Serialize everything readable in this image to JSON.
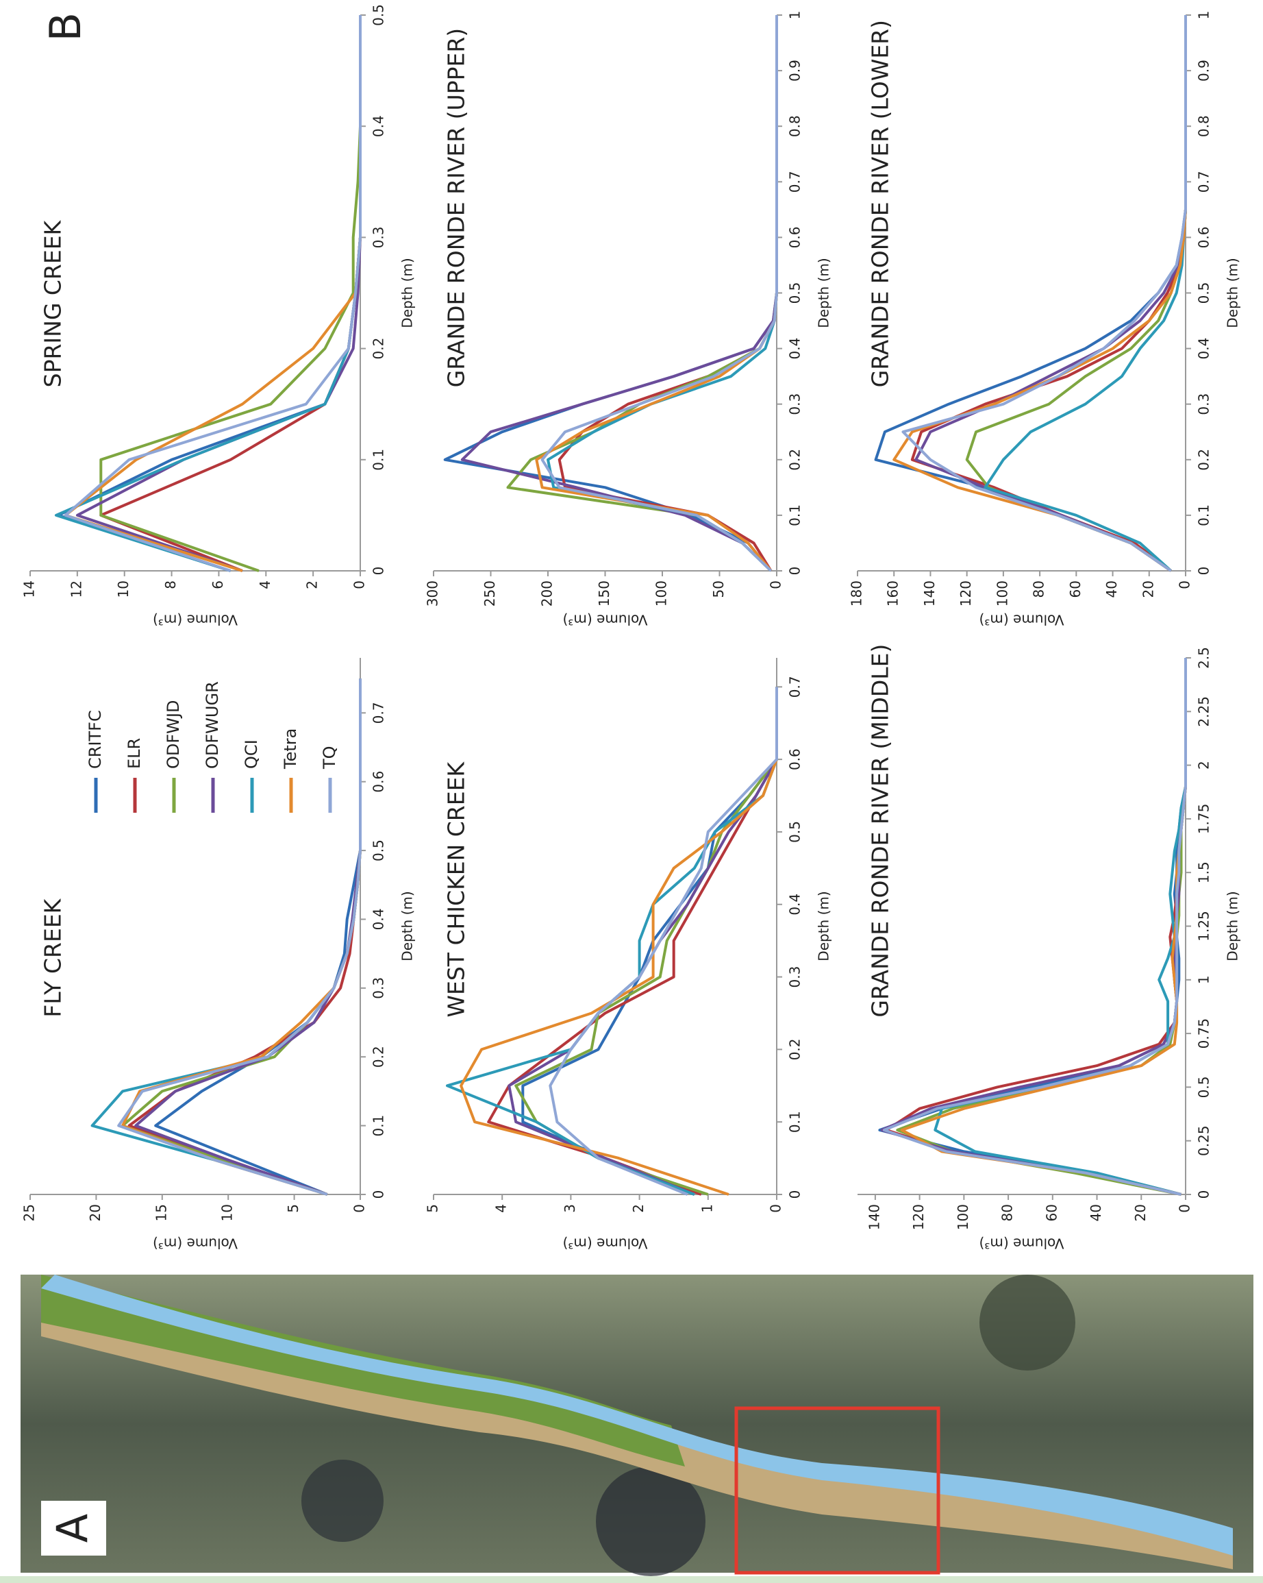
{
  "panel_labels": [
    "A",
    "B"
  ],
  "chart_data": [
    {
      "type": "line",
      "title": "FLY CREEK",
      "x_label": "Depth (m)",
      "y_label": "Volume (m³)",
      "legend": "upper right",
      "x": [
        0,
        0.05,
        0.1,
        0.15,
        0.2,
        0.25,
        0.3,
        0.35,
        0.4,
        0.45,
        0.5,
        0.55,
        0.6,
        0.65,
        0.7,
        0.75
      ],
      "xlim": [
        0,
        0.78
      ],
      "xticks": [
        0,
        0.1,
        0.2,
        0.3,
        0.4,
        0.5,
        0.6,
        0.7
      ],
      "ylim": [
        0,
        25
      ],
      "yticks": [
        0,
        5,
        10,
        15,
        20,
        25
      ],
      "series": [
        {
          "name": "CRITFC",
          "color": "#2f6db5",
          "values": [
            2.5,
            9,
            15.5,
            12,
            7.5,
            4,
            2,
            1.2,
            1,
            0.5,
            0,
            0,
            0,
            0,
            0,
            0
          ]
        },
        {
          "name": "ELR",
          "color": "#b5373b",
          "values": [
            2.5,
            10,
            17.5,
            14,
            8,
            3.5,
            1.5,
            0.8,
            0.5,
            0.2,
            0,
            0,
            0,
            0,
            0,
            0
          ]
        },
        {
          "name": "ODFWJD",
          "color": "#7ea640",
          "values": [
            2.5,
            10.5,
            18,
            15,
            6.5,
            4,
            2,
            1,
            0.5,
            0.2,
            0,
            0,
            0,
            0,
            0,
            0
          ]
        },
        {
          "name": "ODFWUGR",
          "color": "#6b4c9a",
          "values": [
            2.5,
            10,
            17,
            14,
            7,
            3.5,
            2,
            1,
            0.6,
            0.3,
            0,
            0,
            0,
            0,
            0,
            0
          ]
        },
        {
          "name": "QCI",
          "color": "#2c9ab7",
          "values": [
            2.5,
            11,
            20.3,
            18,
            7,
            4,
            2,
            1,
            0.5,
            0.2,
            0,
            0,
            0,
            0,
            0,
            0
          ]
        },
        {
          "name": "Tetra",
          "color": "#e38a2e",
          "values": [
            2.5,
            11,
            18,
            16.7,
            7.5,
            4.5,
            2,
            1,
            0.5,
            0.2,
            0,
            0,
            0,
            0,
            0,
            0
          ]
        },
        {
          "name": "TQ",
          "color": "#8fa6d6",
          "values": [
            2.5,
            11,
            18.3,
            16.5,
            7,
            4,
            2,
            1,
            0.5,
            0.2,
            0,
            0,
            0,
            0,
            0,
            0
          ]
        }
      ]
    },
    {
      "type": "line",
      "title": "SPRING CREEK",
      "x_label": "Depth (m)",
      "y_label": "Volume (m³)",
      "x": [
        0,
        0.05,
        0.1,
        0.15,
        0.2,
        0.25,
        0.3,
        0.35,
        0.4,
        0.45,
        0.5
      ],
      "xlim": [
        0,
        0.5
      ],
      "xticks": [
        0,
        0.1,
        0.2,
        0.3,
        0.4,
        0.5
      ],
      "ylim": [
        0,
        14
      ],
      "yticks": [
        0,
        2,
        4,
        6,
        8,
        10,
        12,
        14
      ],
      "series": [
        {
          "name": "CRITFC",
          "color": "#2f6db5",
          "values": [
            5.5,
            12.8,
            8,
            1.5,
            0.5,
            0.2,
            0,
            0,
            0,
            0,
            0
          ]
        },
        {
          "name": "ELR",
          "color": "#b5373b",
          "values": [
            5,
            11,
            5.5,
            1.5,
            0.5,
            0.2,
            0,
            0,
            0,
            0,
            0
          ]
        },
        {
          "name": "ODFWJD",
          "color": "#7ea640",
          "values": [
            4.3,
            11,
            11,
            3.8,
            1.5,
            0.3,
            0.3,
            0.1,
            0,
            0,
            0
          ]
        },
        {
          "name": "ODFWUGR",
          "color": "#6b4c9a",
          "values": [
            5,
            12,
            7.5,
            1.5,
            0.3,
            0.1,
            0,
            0,
            0,
            0,
            0
          ]
        },
        {
          "name": "QCI",
          "color": "#2c9ab7",
          "values": [
            5.5,
            12.9,
            7.5,
            1.5,
            0.5,
            0.2,
            0,
            0,
            0,
            0,
            0
          ]
        },
        {
          "name": "Tetra",
          "color": "#e38a2e",
          "values": [
            5,
            12.5,
            9.5,
            5,
            2,
            0.2,
            0,
            0,
            0,
            0,
            0
          ]
        },
        {
          "name": "TQ",
          "color": "#8fa6d6",
          "values": [
            5.5,
            12.5,
            9.8,
            2.3,
            0.5,
            0.2,
            0,
            0,
            0,
            0,
            0
          ]
        }
      ]
    },
    {
      "type": "line",
      "title": "WEST CHICKEN CREEK",
      "x_label": "Depth (m)",
      "y_label": "Volume (m³)",
      "x": [
        0,
        0.05,
        0.1,
        0.15,
        0.2,
        0.25,
        0.3,
        0.35,
        0.4,
        0.45,
        0.5,
        0.55,
        0.6,
        0.65,
        0.7
      ],
      "xlim": [
        0,
        0.74
      ],
      "xticks": [
        0,
        0.1,
        0.2,
        0.3,
        0.4,
        0.5,
        0.6,
        0.7
      ],
      "ylim": [
        0,
        5
      ],
      "yticks": [
        0,
        1,
        2,
        3,
        4,
        5
      ],
      "series": [
        {
          "name": "CRITFC",
          "color": "#2f6db5",
          "values": [
            1.2,
            2.5,
            3.7,
            3.7,
            2.6,
            2.3,
            2,
            1.8,
            1.4,
            1,
            0.9,
            0.4,
            0,
            0,
            0
          ]
        },
        {
          "name": "ELR",
          "color": "#b5373b",
          "values": [
            1.1,
            2.5,
            4.2,
            3.9,
            3.2,
            2.5,
            1.5,
            1.5,
            1.2,
            0.9,
            0.6,
            0.3,
            0,
            0,
            0
          ]
        },
        {
          "name": "ODFWJD",
          "color": "#7ea640",
          "values": [
            1,
            2.6,
            3.5,
            3.8,
            2.7,
            2.6,
            1.7,
            1.6,
            1.3,
            1,
            0.8,
            0.4,
            0,
            0,
            0
          ]
        },
        {
          "name": "ODFWUGR",
          "color": "#6b4c9a",
          "values": [
            1.2,
            2.5,
            3.8,
            3.9,
            3,
            2.6,
            2,
            1.7,
            1.3,
            1,
            0.7,
            0.3,
            0,
            0,
            0
          ]
        },
        {
          "name": "QCI",
          "color": "#2c9ab7",
          "values": [
            1.2,
            2.6,
            3.5,
            4.8,
            3,
            2.6,
            2,
            2,
            1.8,
            1.2,
            0.9,
            0.2,
            0,
            0,
            0
          ]
        },
        {
          "name": "Tetra",
          "color": "#e38a2e",
          "values": [
            0.7,
            2.3,
            4.4,
            4.6,
            4.3,
            2.7,
            1.8,
            1.8,
            1.8,
            1.5,
            0.8,
            0.2,
            0,
            0,
            0
          ]
        },
        {
          "name": "TQ",
          "color": "#8fa6d6",
          "values": [
            1.3,
            2.6,
            3.2,
            3.3,
            3,
            2.6,
            2,
            1.7,
            1.4,
            1.1,
            1,
            0.5,
            0,
            0,
            0
          ]
        }
      ]
    },
    {
      "type": "line",
      "title": "GRANDE RONDE RIVER (UPPER)",
      "x_label": "Depth (m)",
      "y_label": "Volume (m³)",
      "x": [
        0,
        0.05,
        0.1,
        0.15,
        0.2,
        0.25,
        0.3,
        0.35,
        0.4,
        0.45,
        0.5,
        1
      ],
      "xlim": [
        0,
        1
      ],
      "xticks": [
        0,
        0.1,
        0.2,
        0.3,
        0.4,
        0.5,
        0.6,
        0.7,
        0.8,
        0.9,
        1
      ],
      "ylim": [
        0,
        300
      ],
      "yticks": [
        0,
        50,
        100,
        150,
        200,
        250,
        300
      ],
      "series": [
        {
          "name": "CRITFC",
          "color": "#2f6db5",
          "values": [
            5,
            25,
            75,
            150,
            290,
            240,
            170,
            90,
            20,
            3,
            0,
            0
          ]
        },
        {
          "name": "ELR",
          "color": "#b5373b",
          "values": [
            5,
            20,
            60,
            185,
            190,
            170,
            130,
            60,
            15,
            2,
            0,
            0
          ]
        },
        {
          "name": "ODFWJD",
          "color": "#7ea640",
          "values": [
            5,
            30,
            70,
            235,
            215,
            160,
            120,
            60,
            15,
            2,
            0,
            0
          ]
        },
        {
          "name": "ODFWUGR",
          "color": "#6b4c9a",
          "values": [
            5,
            30,
            80,
            175,
            275,
            250,
            170,
            90,
            20,
            3,
            0,
            0
          ]
        },
        {
          "name": "QCI",
          "color": "#2c9ab7",
          "values": [
            5,
            30,
            70,
            195,
            200,
            160,
            110,
            40,
            10,
            2,
            0,
            0
          ]
        },
        {
          "name": "Tetra",
          "color": "#e38a2e",
          "values": [
            5,
            25,
            60,
            205,
            210,
            170,
            110,
            50,
            15,
            2,
            0,
            0
          ]
        },
        {
          "name": "TQ",
          "color": "#8fa6d6",
          "values": [
            5,
            30,
            70,
            190,
            205,
            185,
            120,
            55,
            15,
            2,
            0,
            0
          ]
        }
      ]
    },
    {
      "type": "line",
      "title": "GRANDE RONDE RIVER (MIDDLE)",
      "x_label": "Depth (m)",
      "y_label": "Volume (m³)",
      "x": [
        0,
        0.1,
        0.2,
        0.3,
        0.4,
        0.5,
        0.6,
        0.7,
        0.8,
        0.9,
        1,
        1.1,
        1.2,
        1.3,
        1.4,
        1.5,
        1.6,
        1.7,
        1.8,
        1.9,
        2,
        2.5
      ],
      "xlim": [
        0,
        2.5
      ],
      "xticks": [
        0,
        0.25,
        0.5,
        0.75,
        1,
        1.25,
        1.5,
        1.75,
        2,
        2.25,
        2.5
      ],
      "ylim": [
        0,
        148
      ],
      "yticks": [
        0,
        20,
        40,
        60,
        80,
        100,
        120,
        140
      ],
      "series": [
        {
          "name": "CRITFC",
          "color": "#2f6db5",
          "values": [
            2,
            40,
            100,
            138,
            110,
            70,
            30,
            10,
            5,
            4,
            3,
            3,
            4,
            4,
            5,
            4,
            4,
            3,
            2,
            0,
            0,
            0
          ]
        },
        {
          "name": "ELR",
          "color": "#b5373b",
          "values": [
            2,
            45,
            105,
            135,
            120,
            85,
            40,
            12,
            5,
            4,
            5,
            6,
            7,
            5,
            4,
            3,
            3,
            2,
            1,
            0,
            0,
            0
          ]
        },
        {
          "name": "ODFWJD",
          "color": "#7ea640",
          "values": [
            2,
            50,
            105,
            130,
            105,
            65,
            20,
            7,
            5,
            4,
            5,
            4,
            4,
            3,
            3,
            2,
            2,
            2,
            1,
            0,
            0,
            0
          ]
        },
        {
          "name": "ODFWUGR",
          "color": "#6b4c9a",
          "values": [
            2,
            45,
            105,
            137,
            115,
            75,
            30,
            10,
            5,
            4,
            5,
            5,
            5,
            4,
            3,
            3,
            3,
            2,
            1,
            0,
            0,
            0
          ]
        },
        {
          "name": "QCI",
          "color": "#2c9ab7",
          "values": [
            2,
            40,
            95,
            113,
            110,
            65,
            25,
            8,
            8,
            8,
            12,
            8,
            5,
            6,
            7,
            6,
            5,
            3,
            2,
            0,
            0,
            0
          ]
        },
        {
          "name": "Tetra",
          "color": "#e38a2e",
          "values": [
            2,
            45,
            110,
            128,
            100,
            60,
            20,
            5,
            4,
            4,
            5,
            6,
            5,
            4,
            4,
            4,
            3,
            2,
            1,
            0,
            0,
            0
          ]
        },
        {
          "name": "TQ",
          "color": "#8fa6d6",
          "values": [
            2,
            45,
            108,
            136,
            112,
            65,
            25,
            8,
            5,
            4,
            4,
            4,
            4,
            4,
            4,
            3,
            3,
            2,
            1,
            0,
            0,
            0
          ]
        }
      ]
    },
    {
      "type": "line",
      "title": "GRANDE RONDE RIVER (LOWER)",
      "x_label": "Depth (m)",
      "y_label": "Volume (m³)",
      "x": [
        0,
        0.05,
        0.1,
        0.15,
        0.2,
        0.25,
        0.3,
        0.35,
        0.4,
        0.45,
        0.5,
        0.55,
        0.6,
        0.65,
        0.7,
        1
      ],
      "xlim": [
        0,
        1
      ],
      "xticks": [
        0,
        0.1,
        0.2,
        0.3,
        0.4,
        0.5,
        0.6,
        0.7,
        0.8,
        0.9,
        1
      ],
      "ylim": [
        0,
        180
      ],
      "yticks": [
        0,
        20,
        40,
        60,
        80,
        100,
        120,
        140,
        160,
        180
      ],
      "series": [
        {
          "name": "CRITFC",
          "color": "#2f6db5",
          "values": [
            8,
            30,
            70,
            110,
            170,
            165,
            130,
            90,
            55,
            30,
            15,
            5,
            2,
            0,
            0,
            0
          ]
        },
        {
          "name": "ELR",
          "color": "#b5373b",
          "values": [
            8,
            28,
            68,
            105,
            150,
            145,
            110,
            65,
            35,
            20,
            10,
            3,
            1,
            0,
            0,
            0
          ]
        },
        {
          "name": "ODFWJD",
          "color": "#7ea640",
          "values": [
            8,
            30,
            70,
            108,
            120,
            115,
            75,
            55,
            30,
            15,
            8,
            3,
            1,
            0,
            0,
            0
          ]
        },
        {
          "name": "ODFWUGR",
          "color": "#6b4c9a",
          "values": [
            8,
            30,
            68,
            110,
            148,
            140,
            105,
            75,
            45,
            25,
            12,
            4,
            1,
            0,
            0,
            0
          ]
        },
        {
          "name": "QCI",
          "color": "#2c9ab7",
          "values": [
            8,
            25,
            60,
            110,
            100,
            85,
            55,
            35,
            25,
            12,
            5,
            2,
            1,
            0,
            0,
            0
          ]
        },
        {
          "name": "Tetra",
          "color": "#e38a2e",
          "values": [
            8,
            30,
            70,
            125,
            160,
            150,
            105,
            70,
            40,
            20,
            8,
            3,
            1,
            0,
            0,
            0
          ]
        },
        {
          "name": "TQ",
          "color": "#8fa6d6",
          "values": [
            8,
            30,
            70,
            115,
            140,
            155,
            100,
            70,
            45,
            28,
            15,
            5,
            2,
            0,
            0,
            0
          ]
        }
      ]
    }
  ]
}
